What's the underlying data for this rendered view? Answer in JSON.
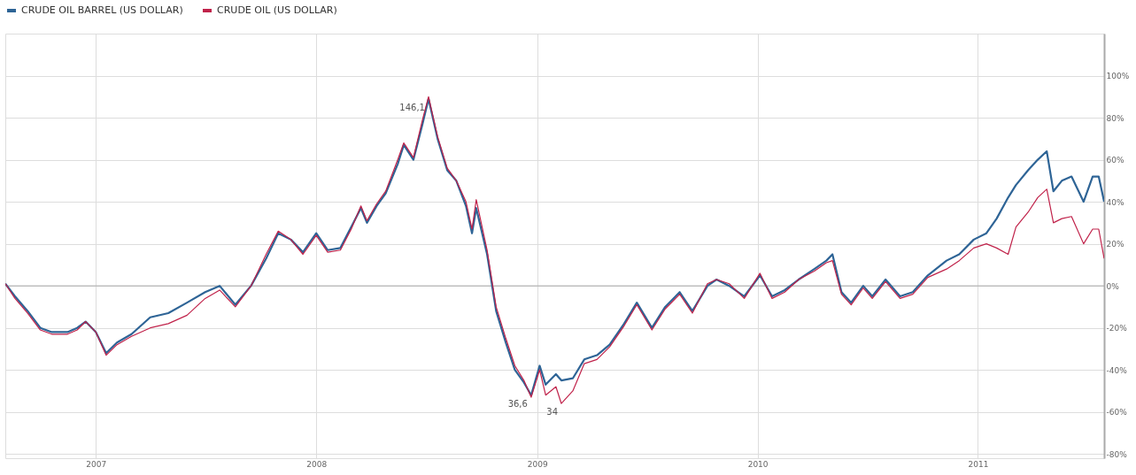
{
  "chart_data": {
    "type": "line",
    "x": [
      "2006-08-04",
      "2006-08-20",
      "2006-09-10",
      "2006-10-01",
      "2006-10-20",
      "2006-11-15",
      "2006-12-01",
      "2006-12-15",
      "2007-01-01",
      "2007-01-18",
      "2007-02-05",
      "2007-03-01",
      "2007-04-01",
      "2007-05-01",
      "2007-06-01",
      "2007-07-01",
      "2007-07-25",
      "2007-08-20",
      "2007-09-15",
      "2007-10-10",
      "2007-10-30",
      "2007-11-20",
      "2007-12-10",
      "2008-01-01",
      "2008-01-20",
      "2008-02-10",
      "2008-02-28",
      "2008-03-15",
      "2008-03-25",
      "2008-04-10",
      "2008-04-25",
      "2008-05-15",
      "2008-05-25",
      "2008-06-10",
      "2008-06-25",
      "2008-07-05",
      "2008-07-20",
      "2008-08-05",
      "2008-08-20",
      "2008-09-05",
      "2008-09-15",
      "2008-09-22",
      "2008-10-10",
      "2008-10-25",
      "2008-11-10",
      "2008-11-25",
      "2008-12-10",
      "2008-12-22",
      "2009-01-05",
      "2009-01-15",
      "2009-02-01",
      "2009-02-10",
      "2009-03-01",
      "2009-03-20",
      "2009-04-10",
      "2009-05-01",
      "2009-05-25",
      "2009-06-15",
      "2009-07-10",
      "2009-08-01",
      "2009-08-25",
      "2009-09-15",
      "2009-10-10",
      "2009-10-25",
      "2009-11-15",
      "2009-12-10",
      "2010-01-05",
      "2010-01-25",
      "2010-02-15",
      "2010-03-10",
      "2010-04-05",
      "2010-04-25",
      "2010-05-05",
      "2010-05-20",
      "2010-06-05",
      "2010-06-25",
      "2010-07-10",
      "2010-08-01",
      "2010-08-25",
      "2010-09-15",
      "2010-10-10",
      "2010-11-10",
      "2010-12-01",
      "2010-12-25",
      "2011-01-15",
      "2011-02-01",
      "2011-02-20",
      "2011-03-05",
      "2011-03-25",
      "2011-04-10",
      "2011-04-25",
      "2011-05-06",
      "2011-05-20",
      "2011-06-05",
      "2011-06-25",
      "2011-07-10",
      "2011-07-20",
      "2011-07-29"
    ],
    "series": [
      {
        "name": "CRUDE OIL BARREL (US DOLLAR)",
        "color": "#2e6496",
        "values": [
          1,
          -5,
          -12,
          -20,
          -22,
          -22,
          -20,
          -17,
          -22,
          -32,
          -27,
          -23,
          -15,
          -13,
          -8,
          -3,
          0,
          -9,
          0,
          13,
          25,
          22,
          16,
          25,
          17,
          18,
          28,
          37,
          30,
          38,
          44,
          58,
          67,
          60,
          77,
          89,
          70,
          55,
          50,
          38,
          25,
          37,
          15,
          -12,
          -27,
          -40,
          -46,
          -52,
          -38,
          -47,
          -42,
          -45,
          -44,
          -35,
          -33,
          -28,
          -18,
          -8,
          -20,
          -10,
          -3,
          -12,
          0,
          3,
          0,
          -5,
          5,
          -5,
          -2,
          3,
          8,
          12,
          15,
          -3,
          -8,
          0,
          -5,
          3,
          -5,
          -3,
          5,
          12,
          15,
          22,
          25,
          32,
          42,
          48,
          55,
          60,
          64,
          45,
          50,
          52,
          40,
          52,
          52,
          40
        ]
      },
      {
        "name": "CRUDE OIL (US DOLLAR)",
        "color": "#c0224a",
        "values": [
          1,
          -6,
          -13,
          -21,
          -23,
          -23,
          -21,
          -17,
          -22,
          -33,
          -28,
          -24,
          -20,
          -18,
          -14,
          -6,
          -2,
          -10,
          0,
          15,
          26,
          22,
          15,
          24,
          16,
          17,
          27,
          38,
          31,
          39,
          45,
          60,
          68,
          61,
          79,
          90,
          71,
          56,
          50,
          40,
          27,
          41,
          17,
          -10,
          -25,
          -38,
          -45,
          -53,
          -40,
          -52,
          -48,
          -56,
          -50,
          -37,
          -35,
          -29,
          -19,
          -9,
          -21,
          -11,
          -4,
          -13,
          1,
          3,
          1,
          -6,
          6,
          -6,
          -3,
          3,
          7,
          11,
          12,
          -4,
          -9,
          -1,
          -6,
          2,
          -6,
          -4,
          4,
          8,
          12,
          18,
          20,
          18,
          15,
          28,
          35,
          42,
          46,
          30,
          32,
          33,
          20,
          27,
          27,
          13
        ]
      }
    ],
    "xlim": [
      "2006-08-04",
      "2011-07-29"
    ],
    "xticks": [
      {
        "value": "2007-01-01",
        "label": "2007"
      },
      {
        "value": "2008-01-01",
        "label": "2008"
      },
      {
        "value": "2009-01-01",
        "label": "2009"
      },
      {
        "value": "2010-01-01",
        "label": "2010"
      },
      {
        "value": "2011-01-01",
        "label": "2011"
      }
    ],
    "ylim": [
      -82,
      120
    ],
    "yticks": [
      {
        "value": -80,
        "label": "-80%"
      },
      {
        "value": -60,
        "label": "-60%"
      },
      {
        "value": -40,
        "label": "-40%"
      },
      {
        "value": -20,
        "label": "-20%"
      },
      {
        "value": 0,
        "label": "0%"
      },
      {
        "value": 20,
        "label": "20%"
      },
      {
        "value": 40,
        "label": "40%"
      },
      {
        "value": 60,
        "label": "60%"
      },
      {
        "value": 80,
        "label": "80%"
      },
      {
        "value": 100,
        "label": "100%"
      }
    ],
    "ref_lines": [
      {
        "axis": "y",
        "value": 0,
        "label": null,
        "color": "#aaaaaa"
      }
    ],
    "annotations": [
      {
        "text": "146,1",
        "x": "2008-07-05",
        "y": 89
      },
      {
        "text": "36,6",
        "x": "2008-12-22",
        "y": -52
      },
      {
        "text": "34",
        "x": "2009-02-10",
        "y": -56
      }
    ],
    "grid": true,
    "legend": "top left",
    "marker": "none",
    "line_style": "solid"
  }
}
